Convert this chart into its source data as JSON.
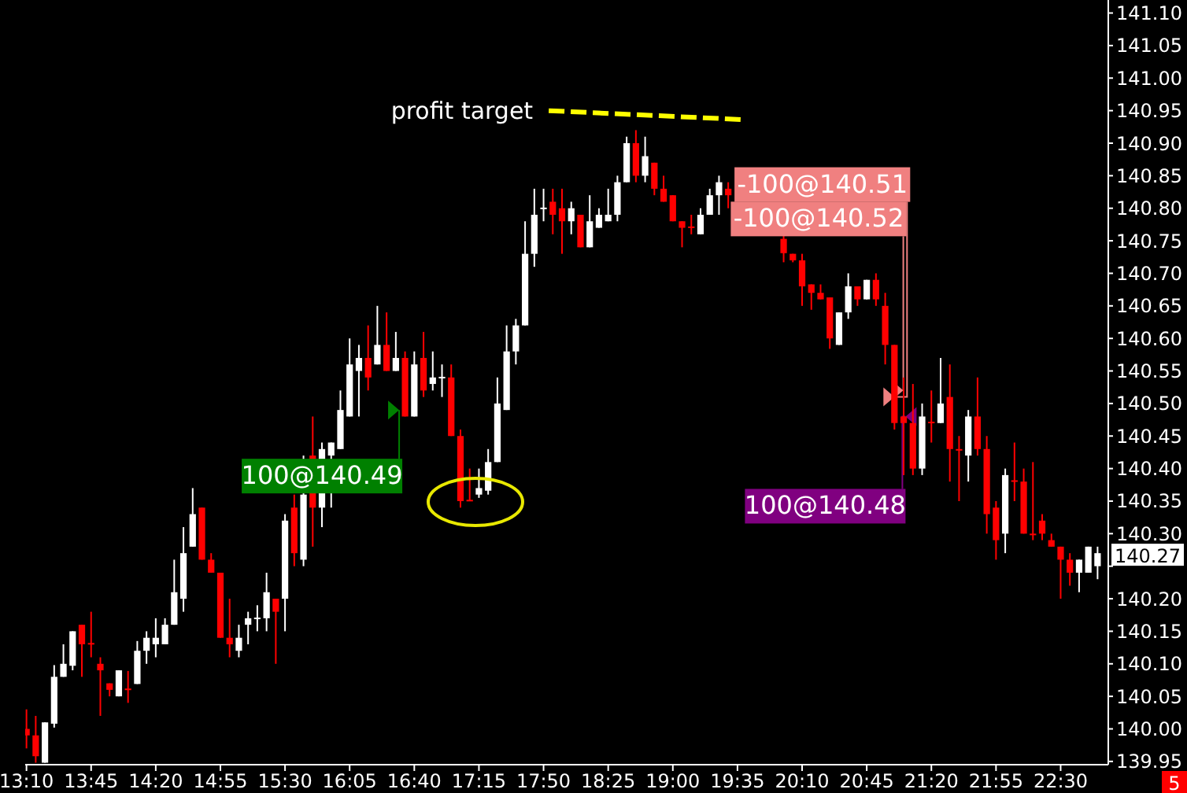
{
  "chart_data": {
    "type": "candlestick",
    "x": [
      13.1667,
      13.25,
      13.3333,
      13.4167,
      13.5,
      13.5833,
      13.6667,
      13.75,
      13.8333,
      13.9167,
      14,
      14.0833,
      14.1667,
      14.25,
      14.3333,
      14.4167,
      14.5,
      14.5833,
      14.6667,
      14.75,
      14.8333,
      14.9167,
      15,
      15.0833,
      15.1667,
      15.25,
      15.3333,
      15.4167,
      15.5,
      15.5833,
      15.6667,
      15.75,
      15.8333,
      15.9167,
      16,
      16.0833,
      16.1667,
      16.25,
      16.3333,
      16.4167,
      16.5,
      16.5833,
      16.6667,
      16.75,
      16.8333,
      16.9167,
      17,
      17.0833,
      17.1667,
      17.25,
      17.3333,
      17.4167,
      17.5,
      17.5833,
      17.6667,
      17.75,
      17.8333,
      17.9167,
      18,
      18.0833,
      18.1667,
      18.25,
      18.3333,
      18.4167,
      18.5,
      18.5833,
      18.6667,
      18.75,
      18.8333,
      18.9167,
      19,
      19.0833,
      19.1667,
      19.25,
      19.3333,
      19.4167,
      19.5,
      20,
      20.0833,
      20.1667,
      20.25,
      20.3333,
      20.4167,
      20.5,
      20.5833,
      20.6667,
      20.75,
      20.8333,
      20.9167,
      21,
      21.0833,
      21.1667,
      21.25,
      21.3333,
      21.4167,
      21.5,
      21.5833,
      21.6667,
      21.75,
      21.8333,
      21.9167,
      22,
      22.0833,
      22.1667,
      22.25,
      22.3333,
      22.4167,
      22.5,
      22.5833,
      22.6667,
      22.75,
      22.8333
    ],
    "ohlc": [
      [
        140.0,
        140.03,
        139.97,
        139.99
      ],
      [
        139.99,
        140.02,
        139.948,
        139.958
      ],
      [
        139.948,
        140.01,
        139.948,
        140.01
      ],
      [
        140.008,
        140.098,
        140.002,
        140.08
      ],
      [
        140.08,
        140.13,
        140.08,
        140.1
      ],
      [
        140.097,
        140.15,
        140.09,
        140.15
      ],
      [
        140.16,
        140.16,
        140.08,
        140.13
      ],
      [
        140.132,
        140.18,
        140.11,
        140.131
      ],
      [
        140.1,
        140.11,
        140.02,
        140.09
      ],
      [
        140.07,
        140.07,
        140.05,
        140.06
      ],
      [
        140.05,
        140.09,
        140.05,
        140.09
      ],
      [
        140.062,
        140.089,
        140.04,
        140.06
      ],
      [
        140.069,
        140.135,
        140.069,
        140.12
      ],
      [
        140.12,
        140.15,
        140.1,
        140.14
      ],
      [
        140.13,
        140.17,
        140.11,
        140.14
      ],
      [
        140.13,
        140.17,
        140.13,
        140.16
      ],
      [
        140.16,
        140.26,
        140.16,
        140.21
      ],
      [
        140.2,
        140.31,
        140.18,
        140.27
      ],
      [
        140.28,
        140.37,
        140.28,
        140.33
      ],
      [
        140.34,
        140.34,
        140.26,
        140.26
      ],
      [
        140.26,
        140.27,
        140.24,
        140.24
      ],
      [
        140.24,
        140.24,
        140.14,
        140.14
      ],
      [
        140.14,
        140.2,
        140.11,
        140.13
      ],
      [
        140.12,
        140.16,
        140.11,
        140.14
      ],
      [
        140.16,
        140.18,
        140.13,
        140.17
      ],
      [
        140.17,
        140.19,
        140.15,
        140.171
      ],
      [
        140.17,
        140.24,
        140.15,
        140.21
      ],
      [
        140.2,
        140.2,
        140.1,
        140.18
      ],
      [
        140.2,
        140.33,
        140.15,
        140.32
      ],
      [
        140.34,
        140.36,
        140.25,
        140.27
      ],
      [
        140.26,
        140.42,
        140.25,
        140.36
      ],
      [
        140.42,
        140.48,
        140.28,
        140.34
      ],
      [
        140.34,
        140.44,
        140.31,
        140.43
      ],
      [
        140.42,
        140.44,
        140.34,
        140.44
      ],
      [
        140.43,
        140.52,
        140.43,
        140.49
      ],
      [
        140.48,
        140.6,
        140.48,
        140.56
      ],
      [
        140.55,
        140.59,
        140.48,
        140.57
      ],
      [
        140.57,
        140.62,
        140.52,
        140.54
      ],
      [
        140.56,
        140.65,
        140.56,
        140.59
      ],
      [
        140.59,
        140.64,
        140.55,
        140.55
      ],
      [
        140.55,
        140.61,
        140.55,
        140.57
      ],
      [
        140.57,
        140.58,
        140.48,
        140.48
      ],
      [
        140.48,
        140.58,
        140.48,
        140.56
      ],
      [
        140.57,
        140.61,
        140.51,
        140.52
      ],
      [
        140.53,
        140.58,
        140.52,
        140.54
      ],
      [
        140.54,
        140.56,
        140.51,
        140.541
      ],
      [
        140.54,
        140.56,
        140.45,
        140.45
      ],
      [
        140.45,
        140.46,
        140.34,
        140.35
      ],
      [
        140.352,
        140.4,
        140.35,
        140.35
      ],
      [
        140.36,
        140.4,
        140.355,
        140.37
      ],
      [
        140.366,
        140.43,
        140.36,
        140.41
      ],
      [
        140.41,
        140.54,
        140.41,
        140.5
      ],
      [
        140.49,
        140.62,
        140.49,
        140.58
      ],
      [
        140.58,
        140.63,
        140.56,
        140.62
      ],
      [
        140.62,
        140.78,
        140.62,
        140.73
      ],
      [
        140.73,
        140.83,
        140.71,
        140.79
      ],
      [
        140.8,
        140.83,
        140.78,
        140.801
      ],
      [
        140.81,
        140.83,
        140.76,
        140.79
      ],
      [
        140.8,
        140.83,
        140.73,
        140.78
      ],
      [
        140.78,
        140.81,
        140.76,
        140.8
      ],
      [
        140.79,
        140.79,
        140.74,
        140.74
      ],
      [
        140.74,
        140.82,
        140.74,
        140.78
      ],
      [
        140.77,
        140.8,
        140.77,
        140.79
      ],
      [
        140.78,
        140.83,
        140.78,
        140.79
      ],
      [
        140.79,
        140.85,
        140.78,
        140.84
      ],
      [
        140.84,
        140.91,
        140.84,
        140.9
      ],
      [
        140.9,
        140.92,
        140.84,
        140.85
      ],
      [
        140.85,
        140.91,
        140.84,
        140.88
      ],
      [
        140.87,
        140.87,
        140.82,
        140.83
      ],
      [
        140.83,
        140.85,
        140.81,
        140.81
      ],
      [
        140.82,
        140.82,
        140.78,
        140.78
      ],
      [
        140.78,
        140.78,
        140.74,
        140.77
      ],
      [
        140.772,
        140.79,
        140.76,
        140.77
      ],
      [
        140.76,
        140.8,
        140.76,
        140.79
      ],
      [
        140.79,
        140.83,
        140.79,
        140.82
      ],
      [
        140.82,
        140.85,
        140.79,
        140.84
      ],
      [
        140.83,
        140.84,
        140.8,
        140.82
      ],
      [
        140.753,
        140.76,
        140.717,
        140.731
      ],
      [
        140.73,
        140.73,
        140.717,
        140.72
      ],
      [
        140.72,
        140.73,
        140.65,
        140.68
      ],
      [
        140.683,
        140.683,
        140.644,
        140.67
      ],
      [
        140.67,
        140.683,
        140.66,
        140.66
      ],
      [
        140.663,
        140.663,
        140.584,
        140.6
      ],
      [
        140.59,
        140.64,
        140.59,
        140.64
      ],
      [
        140.64,
        140.7,
        140.63,
        140.68
      ],
      [
        140.68,
        140.68,
        140.65,
        140.66
      ],
      [
        140.66,
        140.69,
        140.66,
        140.69
      ],
      [
        140.69,
        140.7,
        140.65,
        140.66
      ],
      [
        140.65,
        140.67,
        140.56,
        140.59
      ],
      [
        140.59,
        140.59,
        140.46,
        140.47
      ],
      [
        140.48,
        140.54,
        140.39,
        140.47
      ],
      [
        140.47,
        140.53,
        140.39,
        140.4
      ],
      [
        140.4,
        140.5,
        140.39,
        140.48
      ],
      [
        140.472,
        140.52,
        140.44,
        140.47
      ],
      [
        140.47,
        140.57,
        140.47,
        140.5
      ],
      [
        140.51,
        140.56,
        140.38,
        140.43
      ],
      [
        140.43,
        140.45,
        140.35,
        140.428
      ],
      [
        140.42,
        140.49,
        140.38,
        140.48
      ],
      [
        140.48,
        140.54,
        140.42,
        140.43
      ],
      [
        140.43,
        140.45,
        140.3,
        140.33
      ],
      [
        140.34,
        140.35,
        140.26,
        140.29
      ],
      [
        140.3,
        140.4,
        140.27,
        140.39
      ],
      [
        140.382,
        140.44,
        140.35,
        140.38
      ],
      [
        140.38,
        140.4,
        140.3,
        140.3
      ],
      [
        140.3,
        140.41,
        140.29,
        140.298
      ],
      [
        140.32,
        140.33,
        140.29,
        140.3
      ],
      [
        140.29,
        140.3,
        140.28,
        140.28
      ],
      [
        140.28,
        140.28,
        140.2,
        140.26
      ],
      [
        140.26,
        140.27,
        140.22,
        140.24
      ],
      [
        140.24,
        140.26,
        140.21,
        140.26
      ],
      [
        140.24,
        140.28,
        140.24,
        140.28
      ],
      [
        140.25,
        140.28,
        140.23,
        140.27
      ]
    ],
    "series": [
      {
        "type": "line",
        "name": "profit target",
        "color": "#ffff00",
        "line_style": "dashed",
        "x": [
          17.88,
          19.66
        ],
        "values": [
          140.95,
          140.936
        ]
      }
    ],
    "annotations": [
      {
        "text": "100@140.49",
        "x": 16.53,
        "y": 140.49
      },
      {
        "text": "-100@140.51",
        "x": 21.0,
        "y": 140.51
      },
      {
        "text": "-100@140.52",
        "x": 21.08,
        "y": 140.52
      },
      {
        "text": "100@140.48",
        "x": 21.1,
        "y": 140.48
      },
      {
        "text": "140.27",
        "x": 22.8333,
        "y": 140.27
      },
      "5"
    ],
    "xlim": [
      13.155,
      22.93
    ],
    "ylim": [
      139.945,
      141.12
    ],
    "xticks": [
      {
        "value": 13.1667,
        "label": "13:10"
      },
      {
        "value": 13.75,
        "label": "13:45"
      },
      {
        "value": 14.3333,
        "label": "14:20"
      },
      {
        "value": 14.9167,
        "label": "14:55"
      },
      {
        "value": 15.5,
        "label": "15:30"
      },
      {
        "value": 16.0833,
        "label": "16:05"
      },
      {
        "value": 16.6667,
        "label": "16:40"
      },
      {
        "value": 17.25,
        "label": "17:15"
      },
      {
        "value": 17.8333,
        "label": "17:50"
      },
      {
        "value": 18.4167,
        "label": "18:25"
      },
      {
        "value": 19,
        "label": "19:00"
      },
      {
        "value": 19.5833,
        "label": "19:35"
      },
      {
        "value": 20.1667,
        "label": "20:10"
      },
      {
        "value": 20.75,
        "label": "20:45"
      },
      {
        "value": 21.3333,
        "label": "21:20"
      },
      {
        "value": 21.9167,
        "label": "21:55"
      },
      {
        "value": 22.5,
        "label": "22:30"
      }
    ],
    "yticks": [
      {
        "value": 139.95,
        "label": "139.95"
      },
      {
        "value": 140,
        "label": "140.00"
      },
      {
        "value": 140.05,
        "label": "140.05"
      },
      {
        "value": 140.1,
        "label": "140.10"
      },
      {
        "value": 140.15,
        "label": "140.15"
      },
      {
        "value": 140.2,
        "label": "140.20"
      },
      {
        "value": 140.25,
        "label": null
      },
      {
        "value": 140.3,
        "label": "140.30"
      },
      {
        "value": 140.35,
        "label": "140.35"
      },
      {
        "value": 140.4,
        "label": "140.40"
      },
      {
        "value": 140.45,
        "label": "140.45"
      },
      {
        "value": 140.5,
        "label": "140.50"
      },
      {
        "value": 140.55,
        "label": "140.55"
      },
      {
        "value": 140.6,
        "label": "140.60"
      },
      {
        "value": 140.65,
        "label": "140.65"
      },
      {
        "value": 140.7,
        "label": "140.70"
      },
      {
        "value": 140.75,
        "label": "140.75"
      },
      {
        "value": 140.8,
        "label": "140.80"
      },
      {
        "value": 140.85,
        "label": "140.85"
      },
      {
        "value": 140.9,
        "label": "140.90"
      },
      {
        "value": 140.95,
        "label": "140.95"
      },
      {
        "value": 141,
        "label": "141.00"
      },
      {
        "value": 141.05,
        "label": "141.05"
      },
      {
        "value": 141.1,
        "label": "141.10"
      }
    ]
  }
}
